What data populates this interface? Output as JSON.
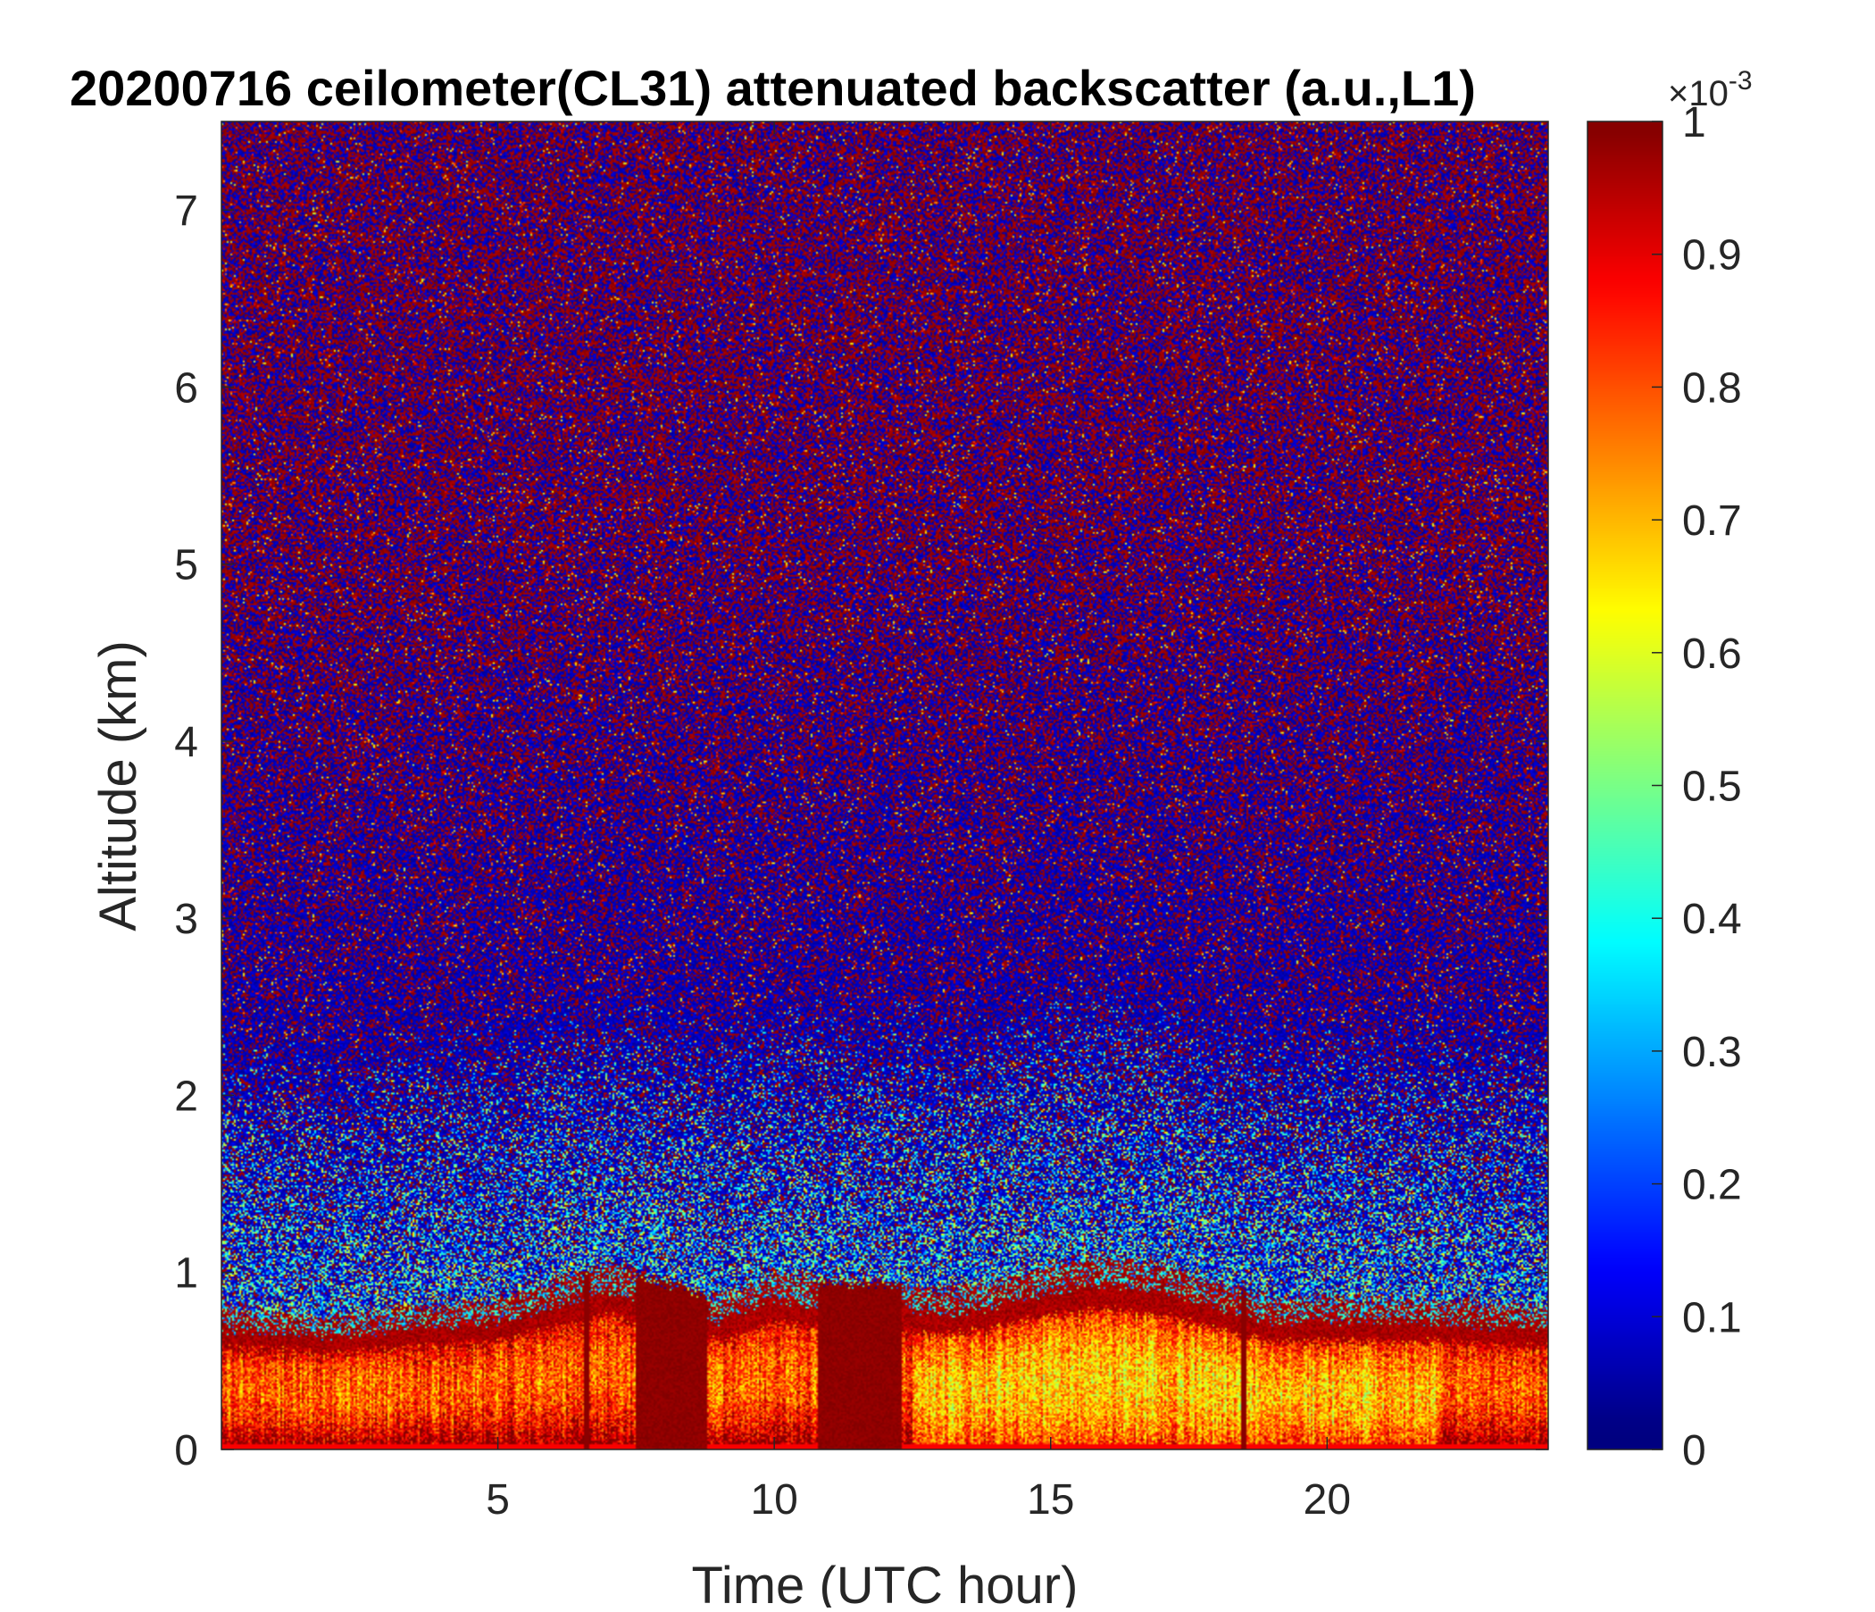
{
  "chart_data": {
    "type": "heatmap",
    "title": "20200716 ceilometer(CL31) attenuated backscatter (a.u.,L1)",
    "xlabel": "Time (UTC hour)",
    "ylabel": "Altitude (km)",
    "xlim": [
      0,
      24
    ],
    "ylim": [
      0,
      7.5
    ],
    "x_ticks": [
      5,
      10,
      15,
      20
    ],
    "y_ticks": [
      0,
      1,
      2,
      3,
      4,
      5,
      6,
      7
    ],
    "colorbar": {
      "colormap": "jet",
      "range": [
        0,
        1
      ],
      "ticks": [
        0,
        0.1,
        0.2,
        0.3,
        0.4,
        0.5,
        0.6,
        0.7,
        0.8,
        0.9,
        1
      ],
      "tick_labels": [
        "0",
        "0.1",
        "0.2",
        "0.3",
        "0.4",
        "0.5",
        "0.6",
        "0.7",
        "0.8",
        "0.9",
        "1"
      ],
      "exponent_base": "×10",
      "exponent_power": "-3"
    },
    "boundary_layer_top_km": [
      [
        0,
        0.8
      ],
      [
        2,
        0.75
      ],
      [
        4,
        0.82
      ],
      [
        5,
        0.85
      ],
      [
        6,
        0.95
      ],
      [
        7,
        1.05
      ],
      [
        8,
        0.95
      ],
      [
        9,
        0.85
      ],
      [
        10,
        1.0
      ],
      [
        11,
        0.95
      ],
      [
        12,
        0.95
      ],
      [
        13,
        0.9
      ],
      [
        14,
        0.95
      ],
      [
        15,
        1.05
      ],
      [
        16,
        1.1
      ],
      [
        17,
        1.05
      ],
      [
        18,
        0.95
      ],
      [
        19,
        0.85
      ],
      [
        20,
        0.85
      ],
      [
        22,
        0.85
      ],
      [
        24,
        0.8
      ]
    ],
    "high_backscatter_events": [
      {
        "t_start": 7.5,
        "t_end": 8.8,
        "z_top_km": 1.0
      },
      {
        "t_start": 10.8,
        "t_end": 12.3,
        "z_top_km": 0.95
      }
    ]
  }
}
